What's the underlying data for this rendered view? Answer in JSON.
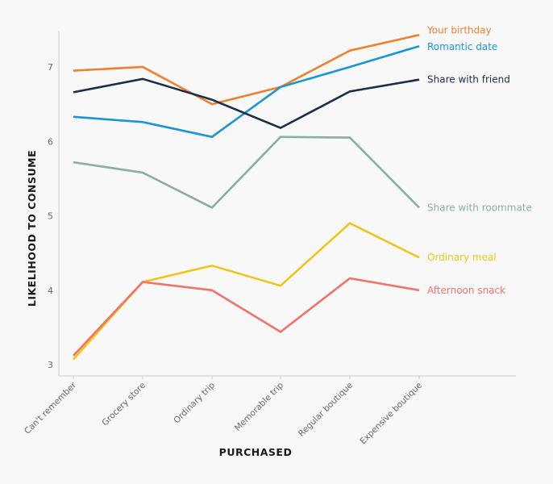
{
  "chart_data": {
    "type": "line",
    "title": "",
    "xlabel": "PURCHASED",
    "ylabel": "LIKELIHOOD TO CONSUME",
    "categories": [
      "Can't remember",
      "Grocery store",
      "Ordinary trip",
      "Memorable trip",
      "Regular boutique",
      "Expensive boutique"
    ],
    "yticks": [
      3,
      4,
      5,
      6,
      7
    ],
    "ylim": [
      2.85,
      7.5
    ],
    "grid": false,
    "legend": "direct labels at line ends (right)",
    "series": [
      {
        "name": "Your birthday",
        "color": "#f07f2e",
        "values": [
          6.95,
          7.0,
          6.5,
          6.73,
          7.22,
          7.43
        ]
      },
      {
        "name": "Romantic date",
        "color": "#1a96d4",
        "values": [
          6.33,
          6.26,
          6.06,
          6.73,
          7.0,
          7.28
        ]
      },
      {
        "name": "Share with friend",
        "color": "#1b2e4b",
        "values": [
          6.66,
          6.84,
          6.56,
          6.18,
          6.67,
          6.83
        ]
      },
      {
        "name": "Share with roommate",
        "color": "#86b0a0",
        "values": [
          5.72,
          5.58,
          5.11,
          6.06,
          6.05,
          5.11
        ]
      },
      {
        "name": "Ordinary meal",
        "color": "#f0c419",
        "values": [
          3.07,
          4.11,
          4.33,
          4.06,
          4.9,
          4.44
        ]
      },
      {
        "name": "Afternoon snack",
        "color": "#f0736a",
        "values": [
          3.12,
          4.11,
          4.0,
          3.44,
          4.16,
          4.0
        ]
      }
    ]
  }
}
